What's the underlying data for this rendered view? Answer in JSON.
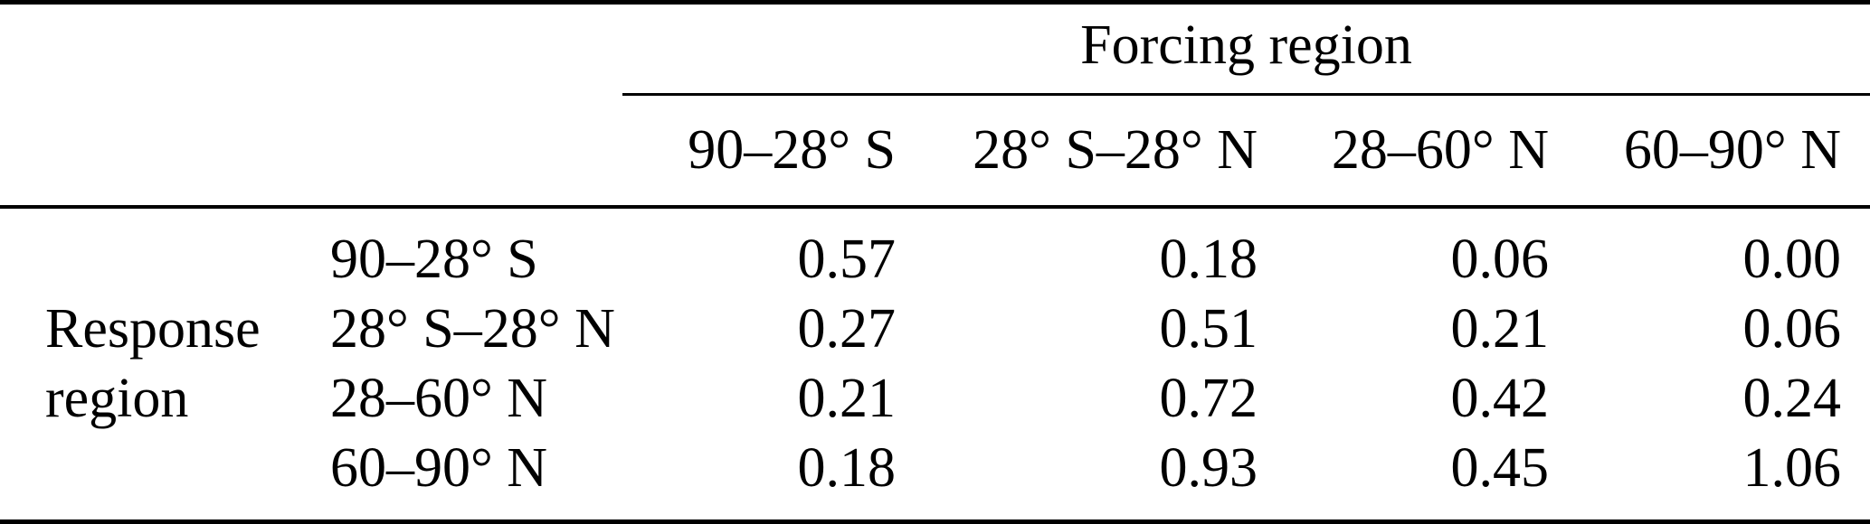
{
  "table": {
    "col_group_header": "Forcing region",
    "row_group_header": "Response region",
    "row_group_header_lines": [
      "Response",
      "region"
    ],
    "columns": [
      "90–28° S",
      "28° S–28° N",
      "28–60° N",
      "60–90° N"
    ],
    "rows": [
      {
        "label": "90–28° S",
        "values": [
          "0.57",
          "0.18",
          "0.06",
          "0.00"
        ]
      },
      {
        "label": "28° S–28° N",
        "values": [
          "0.27",
          "0.51",
          "0.21",
          "0.06"
        ]
      },
      {
        "label": "28–60° N",
        "values": [
          "0.21",
          "0.72",
          "0.42",
          "0.24"
        ]
      },
      {
        "label": "60–90° N",
        "values": [
          "0.18",
          "0.93",
          "0.45",
          "1.06"
        ]
      }
    ]
  },
  "chart_data": {
    "type": "table",
    "title": "",
    "column_group_label": "Forcing region",
    "row_group_label": "Response region",
    "columns": [
      "90–28° S",
      "28° S–28° N",
      "28–60° N",
      "60–90° N"
    ],
    "rows": [
      "90–28° S",
      "28° S–28° N",
      "28–60° N",
      "60–90° N"
    ],
    "values": [
      [
        0.57,
        0.18,
        0.06,
        0.0
      ],
      [
        0.27,
        0.51,
        0.21,
        0.06
      ],
      [
        0.21,
        0.72,
        0.42,
        0.24
      ],
      [
        0.18,
        0.93,
        0.45,
        1.06
      ]
    ]
  },
  "colors": {
    "text": "#000000",
    "background": "#ffffff",
    "rule": "#000000"
  }
}
